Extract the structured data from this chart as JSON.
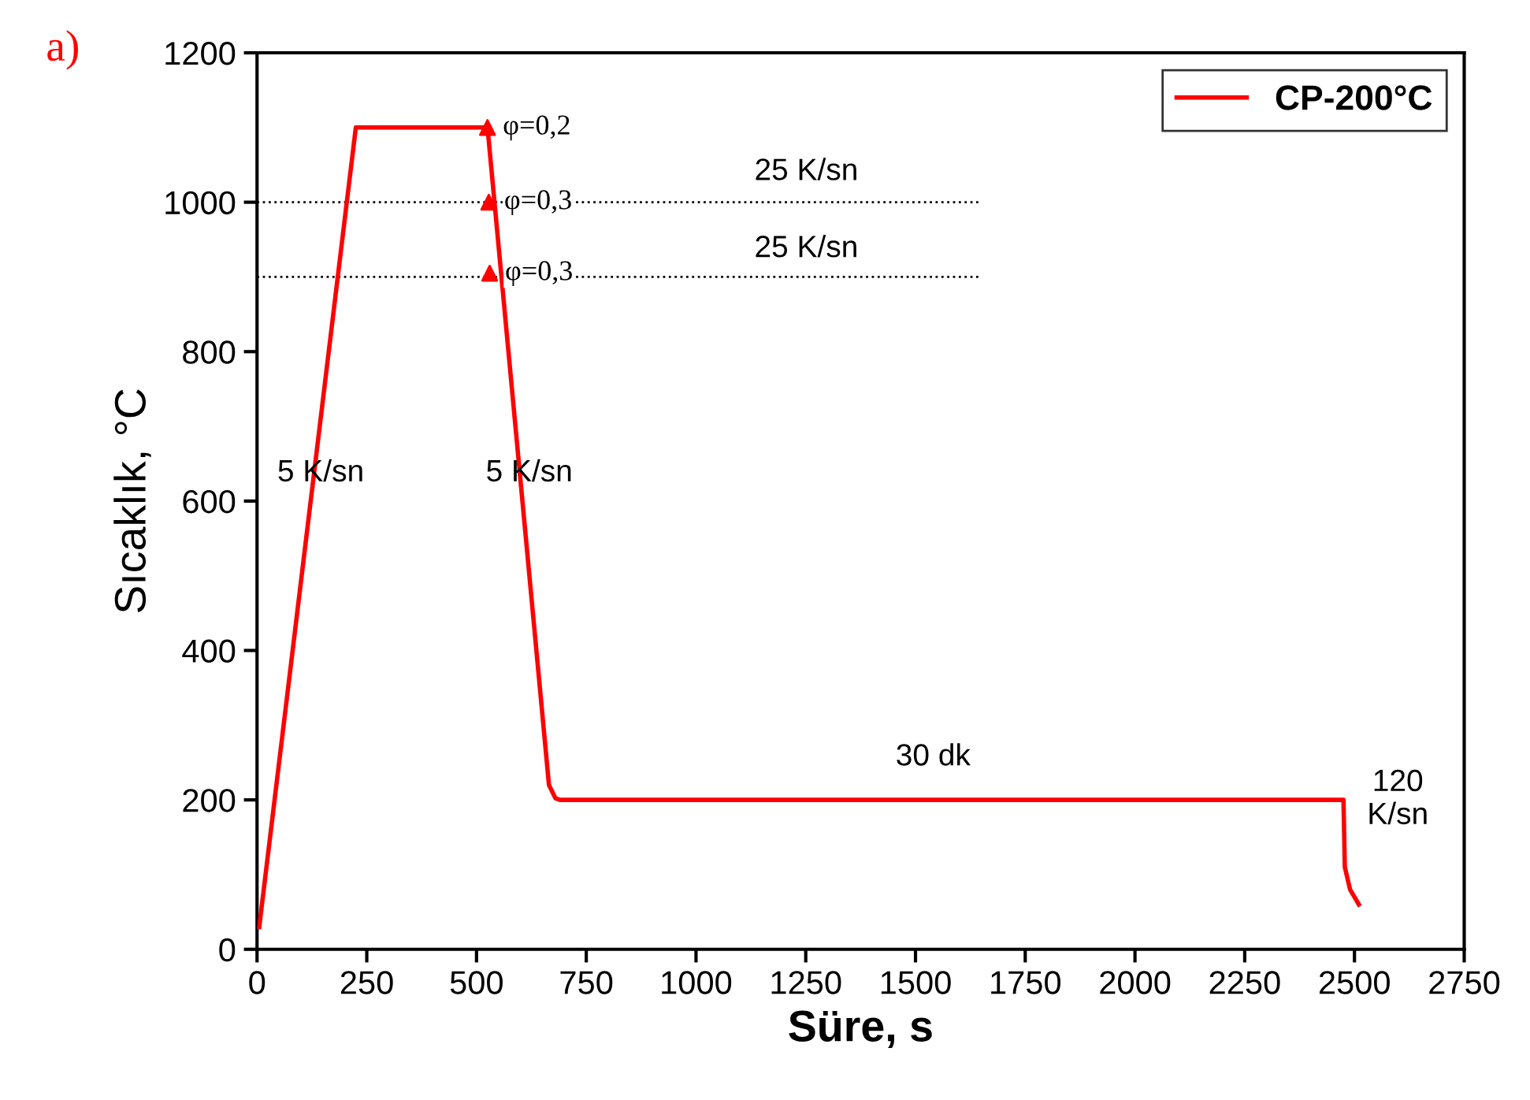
{
  "chart_data": {
    "type": "line",
    "xlabel": "Süre, s",
    "ylabel": "Sıcaklık, °C",
    "xlim": [
      0,
      2750
    ],
    "ylim": [
      0,
      1200
    ],
    "xticks": [
      0,
      250,
      500,
      750,
      1000,
      1250,
      1500,
      1750,
      2000,
      2250,
      2500,
      2750
    ],
    "yticks": [
      0,
      200,
      400,
      600,
      800,
      1000,
      1200
    ],
    "grid": false,
    "legend": "top right",
    "marker": "none",
    "line_style": "solid",
    "series": [
      {
        "name": "CP-200°C",
        "color": "#ff0000",
        "x": [
          5,
          225,
          525,
          665,
          680,
          690,
          2475,
          2478,
          2490,
          2510
        ],
        "values": [
          30,
          1100,
          1100,
          220,
          202,
          200,
          200,
          110,
          80,
          60
        ]
      },
      {
        "type": "scatter",
        "marker": "triangle",
        "color": "#ff0000",
        "x": [
          525,
          528,
          530
        ],
        "values": [
          1100,
          1000,
          905
        ]
      },
      {
        "type": "line",
        "line_style": "dotted",
        "color": "#000000",
        "x": [
          0,
          1650
        ],
        "values": [
          1000,
          1000
        ]
      },
      {
        "type": "line",
        "line_style": "dotted",
        "color": "#000000",
        "x": [
          0,
          1650
        ],
        "values": [
          900,
          900
        ]
      }
    ],
    "annotations": [
      "a)",
      {
        "text": "φ=0,2",
        "x": 525,
        "y": 1100
      },
      {
        "text": "φ=0,3",
        "x": 528,
        "y": 1000
      },
      {
        "text": "φ=0,3",
        "x": 530,
        "y": 905
      },
      "25 K/sn",
      "25 K/sn",
      {
        "text": "5 K/sn",
        "x": 145,
        "y": 637
      },
      {
        "text": "5 K/sn",
        "x": 620,
        "y": 637
      },
      "30 dk",
      "120\nK/sn"
    ]
  }
}
